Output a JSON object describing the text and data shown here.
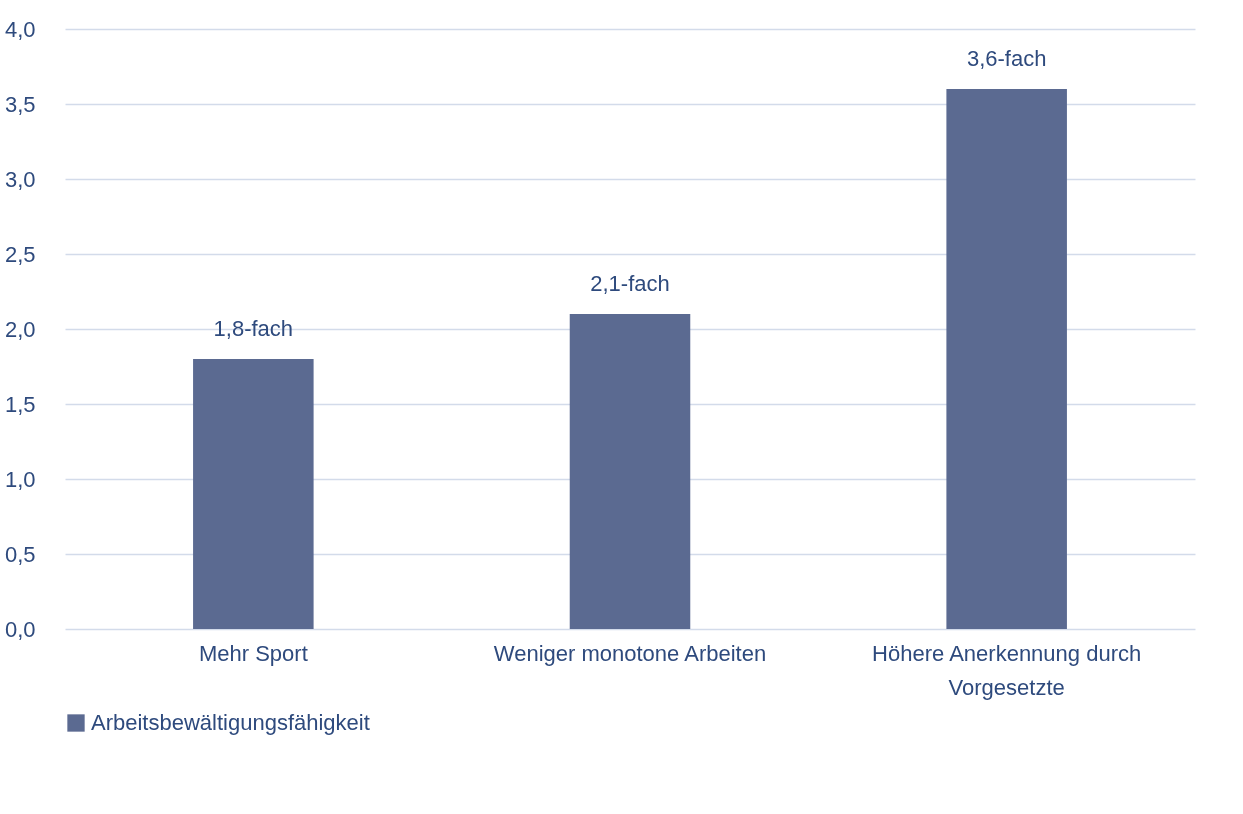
{
  "chart_data": {
    "type": "bar",
    "categories": [
      "Mehr Sport",
      "Weniger monotone Arbeiten",
      "Höhere Anerkennung durch Vorgesetzte"
    ],
    "series": [
      {
        "name": "Arbeitsbewältigungsfähigkeit",
        "color": "#5b6a91",
        "values": [
          1.8,
          2.1,
          3.6
        ],
        "value_labels": [
          "1,8-fach",
          "2,1-fach",
          "3,6-fach"
        ]
      }
    ],
    "ylim": [
      0,
      4
    ],
    "yticks": [
      {
        "value": 0,
        "label": "0,0"
      },
      {
        "value": 0.5,
        "label": "0,5"
      },
      {
        "value": 1,
        "label": "1,0"
      },
      {
        "value": 1.5,
        "label": "1,5"
      },
      {
        "value": 2,
        "label": "2,0"
      },
      {
        "value": 2.5,
        "label": "2,5"
      },
      {
        "value": 3,
        "label": "3,0"
      },
      {
        "value": 3.5,
        "label": "3,5"
      },
      {
        "value": 4,
        "label": "4,0"
      }
    ],
    "grid": "y",
    "legend": "bottom"
  }
}
